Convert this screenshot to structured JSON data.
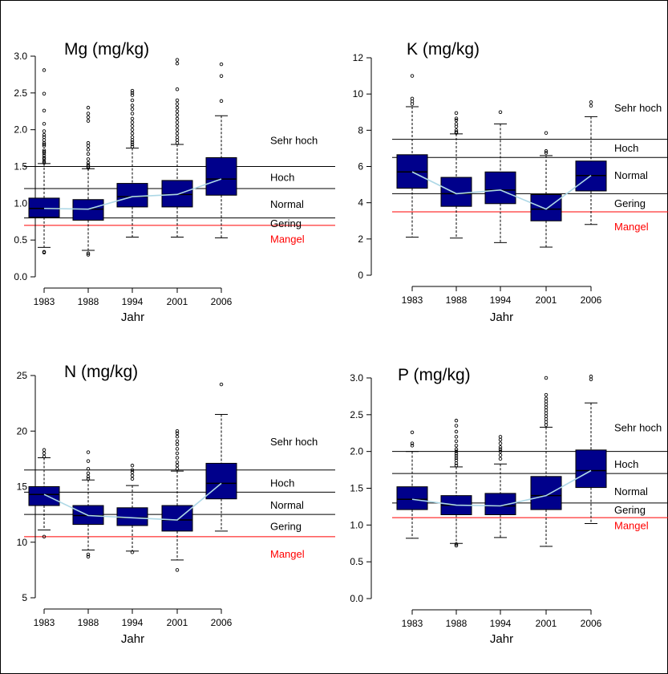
{
  "colors": {
    "box": "#00008B",
    "median_line": "#ADD8E6",
    "threshold": "#000000",
    "mangel": "#FF0000",
    "outlier": "#000000"
  },
  "chart_data": [
    {
      "type": "boxplot",
      "title": "Mg  (mg/kg)",
      "xlabel": "Jahr",
      "categories": [
        "1983",
        "1988",
        "1994",
        "2001",
        "2006"
      ],
      "ylim": [
        0,
        3
      ],
      "yticks": [
        "0.0",
        "0.5",
        "1.0",
        "1.5",
        "2.0",
        "2.5",
        "3.0"
      ],
      "ytick_values": [
        0,
        0.5,
        1,
        1.5,
        2,
        2.5,
        3
      ],
      "boxes": [
        {
          "whisker_low": 0.4,
          "q1": 0.81,
          "median": 0.93,
          "q3": 1.07,
          "whisker_high": 1.54,
          "outliers": [
            0.33,
            0.34,
            1.55,
            1.57,
            1.6,
            1.62,
            1.65,
            1.68,
            1.7,
            1.72,
            1.78,
            1.8,
            1.82,
            1.86,
            1.9,
            1.93,
            1.98,
            2.08,
            2.26,
            2.49,
            2.81
          ]
        },
        {
          "whisker_low": 0.36,
          "q1": 0.77,
          "median": 0.92,
          "q3": 1.05,
          "whisker_high": 1.47,
          "outliers": [
            0.3,
            0.32,
            1.48,
            1.5,
            1.52,
            1.55,
            1.6,
            1.67,
            1.73,
            1.78,
            1.82,
            2.12,
            2.17,
            2.22,
            2.3
          ]
        },
        {
          "whisker_low": 0.54,
          "q1": 0.95,
          "median": 1.09,
          "q3": 1.27,
          "whisker_high": 1.75,
          "outliers": [
            1.77,
            1.8,
            1.83,
            1.86,
            1.9,
            1.95,
            2.0,
            2.05,
            2.1,
            2.15,
            2.22,
            2.28,
            2.33,
            2.4,
            2.47,
            2.5,
            2.53
          ]
        },
        {
          "whisker_low": 0.54,
          "q1": 0.95,
          "median": 1.12,
          "q3": 1.31,
          "whisker_high": 1.8,
          "outliers": [
            1.82,
            1.86,
            1.9,
            1.95,
            2.0,
            2.05,
            2.1,
            2.15,
            2.2,
            2.25,
            2.3,
            2.35,
            2.4,
            2.55,
            2.9,
            2.95
          ]
        },
        {
          "whisker_low": 0.53,
          "q1": 1.11,
          "median": 1.33,
          "q3": 1.62,
          "whisker_high": 2.19,
          "outliers": [
            2.39,
            2.73,
            2.89
          ]
        }
      ],
      "thresholds": [
        {
          "value": 1.5,
          "color": "#000000"
        },
        {
          "value": 1.2,
          "color": "#000000"
        },
        {
          "value": 0.8,
          "color": "#000000"
        },
        {
          "value": 0.7,
          "color": "#FF0000"
        }
      ],
      "labels": [
        {
          "text": "Sehr hoch",
          "value": 1.85,
          "color": "#000000"
        },
        {
          "text": "Hoch",
          "value": 1.35,
          "color": "#000000"
        },
        {
          "text": "Normal",
          "value": 0.98,
          "color": "#000000"
        },
        {
          "text": "Gering",
          "value": 0.72,
          "color": "#000000"
        },
        {
          "text": "Mangel",
          "value": 0.51,
          "color": "#FF0000"
        }
      ]
    },
    {
      "type": "boxplot",
      "title": "K  (mg/kg)",
      "xlabel": "Jahr",
      "categories": [
        "1983",
        "1988",
        "1994",
        "2001",
        "2006"
      ],
      "ylim": [
        0,
        12
      ],
      "yticks": [
        "0",
        "2",
        "4",
        "6",
        "8",
        "10",
        "12"
      ],
      "ytick_values": [
        0,
        2,
        4,
        6,
        8,
        10,
        12
      ],
      "boxes": [
        {
          "whisker_low": 2.1,
          "q1": 4.8,
          "median": 5.7,
          "q3": 6.65,
          "whisker_high": 9.3,
          "outliers": [
            9.45,
            9.6,
            9.75,
            11.0
          ]
        },
        {
          "whisker_low": 2.05,
          "q1": 3.8,
          "median": 4.5,
          "q3": 5.4,
          "whisker_high": 7.8,
          "outliers": [
            7.85,
            7.9,
            8.0,
            8.2,
            8.35,
            8.55,
            8.65,
            8.95
          ]
        },
        {
          "whisker_low": 1.8,
          "q1": 3.95,
          "median": 4.7,
          "q3": 5.7,
          "whisker_high": 8.35,
          "outliers": [
            9.0
          ]
        },
        {
          "whisker_low": 1.55,
          "q1": 3.0,
          "median": 3.65,
          "q3": 4.45,
          "whisker_high": 6.6,
          "outliers": [
            6.75,
            6.85,
            7.85
          ]
        },
        {
          "whisker_low": 2.8,
          "q1": 4.65,
          "median": 5.5,
          "q3": 6.3,
          "whisker_high": 8.75,
          "outliers": [
            9.35,
            9.55
          ]
        }
      ],
      "thresholds": [
        {
          "value": 7.5,
          "color": "#000000"
        },
        {
          "value": 6.5,
          "color": "#000000"
        },
        {
          "value": 4.5,
          "color": "#000000"
        },
        {
          "value": 3.5,
          "color": "#FF0000"
        }
      ],
      "labels": [
        {
          "text": "Sehr hoch",
          "value": 9.2,
          "color": "#000000"
        },
        {
          "text": "Hoch",
          "value": 7.0,
          "color": "#000000"
        },
        {
          "text": "Normal",
          "value": 5.5,
          "color": "#000000"
        },
        {
          "text": "Gering",
          "value": 3.95,
          "color": "#000000"
        },
        {
          "text": "Mangel",
          "value": 2.65,
          "color": "#FF0000"
        }
      ]
    },
    {
      "type": "boxplot",
      "title": "N  (mg/kg)",
      "xlabel": "Jahr",
      "categories": [
        "1983",
        "1988",
        "1994",
        "2001",
        "2006"
      ],
      "ylim": [
        5,
        25
      ],
      "yticks": [
        "5",
        "10",
        "15",
        "20",
        "25"
      ],
      "ytick_values": [
        5,
        10,
        15,
        20,
        25
      ],
      "boxes": [
        {
          "whisker_low": 11.1,
          "q1": 13.3,
          "median": 14.3,
          "q3": 15.0,
          "whisker_high": 17.6,
          "outliers": [
            10.5,
            17.7,
            18.0,
            18.3
          ]
        },
        {
          "whisker_low": 9.3,
          "q1": 11.6,
          "median": 12.4,
          "q3": 13.3,
          "whisker_high": 15.6,
          "outliers": [
            8.7,
            8.9,
            15.7,
            15.9,
            16.2,
            16.6,
            17.3,
            18.1
          ]
        },
        {
          "whisker_low": 9.2,
          "q1": 11.5,
          "median": 12.2,
          "q3": 13.1,
          "whisker_high": 15.1,
          "outliers": [
            9.1,
            15.7,
            16.0,
            16.3,
            16.5,
            16.9
          ]
        },
        {
          "whisker_low": 8.4,
          "q1": 11.0,
          "median": 12.0,
          "q3": 13.3,
          "whisker_high": 16.4,
          "outliers": [
            7.5,
            16.6,
            16.9,
            17.2,
            17.6,
            18.0,
            18.4,
            18.8,
            19.1,
            19.5,
            19.8,
            20.0
          ]
        },
        {
          "whisker_low": 11.0,
          "q1": 13.9,
          "median": 15.3,
          "q3": 17.1,
          "whisker_high": 21.5,
          "outliers": [
            24.2
          ]
        }
      ],
      "thresholds": [
        {
          "value": 16.5,
          "color": "#000000"
        },
        {
          "value": 14.5,
          "color": "#000000"
        },
        {
          "value": 12.5,
          "color": "#000000"
        },
        {
          "value": 10.5,
          "color": "#FF0000"
        }
      ],
      "labels": [
        {
          "text": "Sehr hoch",
          "value": 19.0,
          "color": "#000000"
        },
        {
          "text": "Hoch",
          "value": 15.3,
          "color": "#000000"
        },
        {
          "text": "Normal",
          "value": 13.3,
          "color": "#000000"
        },
        {
          "text": "Gering",
          "value": 11.4,
          "color": "#000000"
        },
        {
          "text": "Mangel",
          "value": 8.9,
          "color": "#FF0000"
        }
      ]
    },
    {
      "type": "boxplot",
      "title": "P  (mg/kg)",
      "xlabel": "Jahr",
      "categories": [
        "1983",
        "1988",
        "1994",
        "2001",
        "2006"
      ],
      "ylim": [
        0,
        3
      ],
      "yticks": [
        "0.0",
        "0.5",
        "1.0",
        "1.5",
        "2.0",
        "2.5",
        "3.0"
      ],
      "ytick_values": [
        0,
        0.5,
        1,
        1.5,
        2,
        2.5,
        3
      ],
      "boxes": [
        {
          "whisker_low": 0.82,
          "q1": 1.21,
          "median": 1.35,
          "q3": 1.52,
          "whisker_high": 2.0,
          "outliers": [
            2.08,
            2.11,
            2.26
          ]
        },
        {
          "whisker_low": 0.75,
          "q1": 1.14,
          "median": 1.27,
          "q3": 1.4,
          "whisker_high": 1.79,
          "outliers": [
            0.72,
            0.74,
            1.81,
            1.84,
            1.88,
            1.91,
            1.94,
            1.97,
            2.0,
            2.03,
            2.08,
            2.14,
            2.2,
            2.27,
            2.35,
            2.42
          ]
        },
        {
          "whisker_low": 0.83,
          "q1": 1.14,
          "median": 1.26,
          "q3": 1.43,
          "whisker_high": 1.83,
          "outliers": [
            1.9,
            1.95,
            2.0,
            2.03,
            2.06,
            2.11,
            2.16,
            2.2
          ]
        },
        {
          "whisker_low": 0.71,
          "q1": 1.21,
          "median": 1.4,
          "q3": 1.66,
          "whisker_high": 2.33,
          "outliers": [
            2.36,
            2.4,
            2.44,
            2.48,
            2.52,
            2.56,
            2.6,
            2.64,
            2.68,
            2.72,
            2.77,
            3.0
          ]
        },
        {
          "whisker_low": 1.02,
          "q1": 1.51,
          "median": 1.74,
          "q3": 2.02,
          "whisker_high": 2.66,
          "outliers": [
            2.98,
            3.02
          ]
        }
      ],
      "thresholds": [
        {
          "value": 2.0,
          "color": "#000000"
        },
        {
          "value": 1.7,
          "color": "#000000"
        },
        {
          "value": 1.3,
          "color": "#000000"
        },
        {
          "value": 1.1,
          "color": "#FF0000"
        }
      ],
      "labels": [
        {
          "text": "Sehr hoch",
          "value": 2.32,
          "color": "#000000"
        },
        {
          "text": "Hoch",
          "value": 1.82,
          "color": "#000000"
        },
        {
          "text": "Normal",
          "value": 1.45,
          "color": "#000000"
        },
        {
          "text": "Gering",
          "value": 1.2,
          "color": "#000000"
        },
        {
          "text": "Mangel",
          "value": 0.99,
          "color": "#FF0000"
        }
      ]
    }
  ]
}
